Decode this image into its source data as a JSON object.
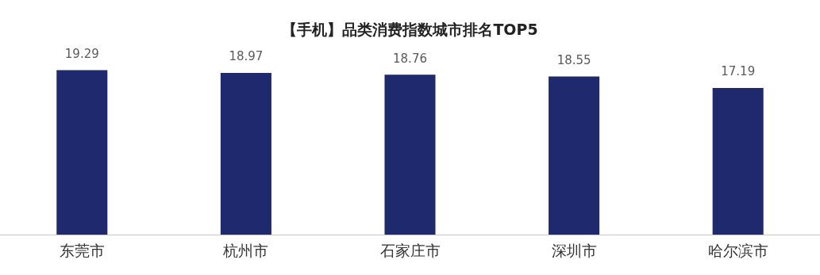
{
  "chart_data": {
    "type": "bar",
    "title": "【手机】品类消费指数城市排名TOP5",
    "categories": [
      "东莞市",
      "杭州市",
      "石家庄市",
      "深圳市",
      "哈尔滨市"
    ],
    "values": [
      19.29,
      18.97,
      18.76,
      18.55,
      17.19
    ],
    "color": "#1f2a6e",
    "data_labels": true,
    "tick_labels": "x",
    "grid": false,
    "legend": false
  }
}
